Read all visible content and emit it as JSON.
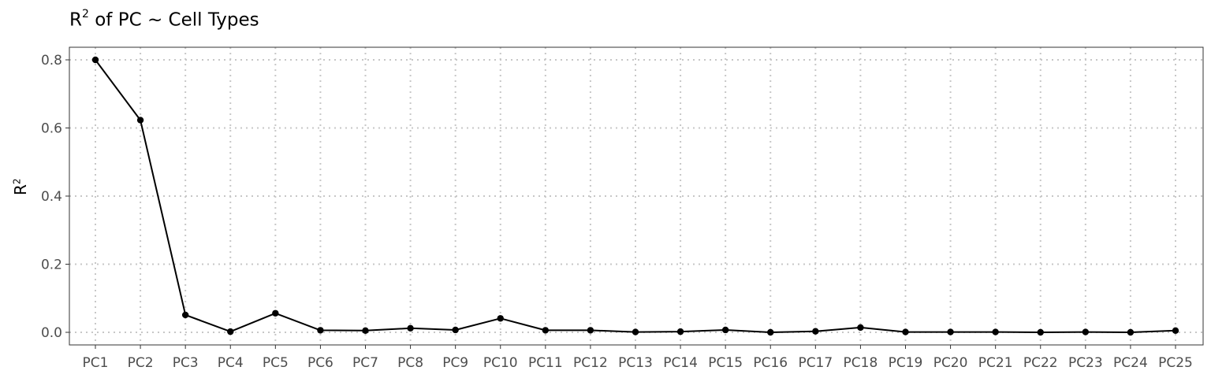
{
  "chart_data": {
    "type": "line",
    "title": {
      "base": "R",
      "sup": "2",
      "rest": " of PC ~  Cell Types"
    },
    "ylabel": {
      "base": "R",
      "sup": "2"
    },
    "xlabel": "",
    "categories": [
      "PC1",
      "PC2",
      "PC3",
      "PC4",
      "PC5",
      "PC6",
      "PC7",
      "PC8",
      "PC9",
      "PC10",
      "PC11",
      "PC12",
      "PC13",
      "PC14",
      "PC15",
      "PC16",
      "PC17",
      "PC18",
      "PC19",
      "PC20",
      "PC21",
      "PC22",
      "PC23",
      "PC24",
      "PC25"
    ],
    "values": [
      0.8,
      0.623,
      0.051,
      0.002,
      0.056,
      0.006,
      0.005,
      0.012,
      0.007,
      0.041,
      0.006,
      0.006,
      0.001,
      0.002,
      0.007,
      0.0,
      0.003,
      0.014,
      0.001,
      0.001,
      0.001,
      0.0,
      0.001,
      0.0,
      0.005
    ],
    "yticks": [
      "0.0",
      "0.2",
      "0.4",
      "0.6",
      "0.8"
    ],
    "ytick_values": [
      0.0,
      0.2,
      0.4,
      0.6,
      0.8
    ],
    "ylim": [
      -0.037,
      0.837
    ],
    "grid": true,
    "grid_style": "dotted",
    "line_color": "#000000",
    "point_color": "#000000",
    "grid_color": "#c7c7c7",
    "legend": "none"
  }
}
